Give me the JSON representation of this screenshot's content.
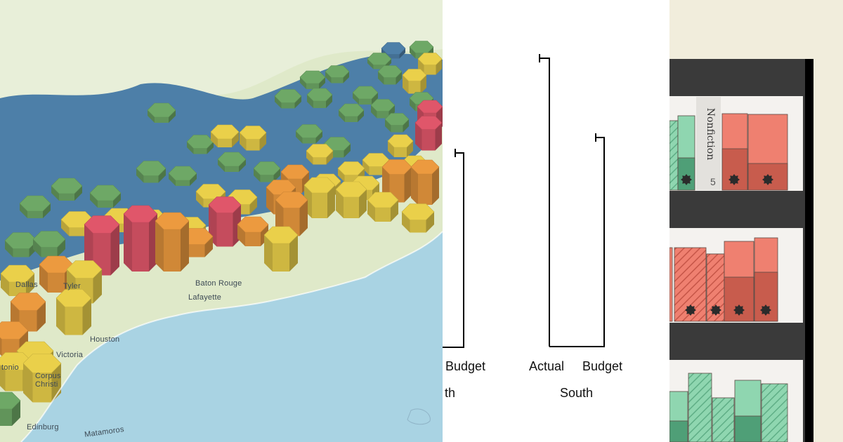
{
  "map": {
    "labels": {
      "matamoros": "Matamoros",
      "edinburg": "Edinburg",
      "corpus_christi": "Corpus\nChristi",
      "victoria": "Victoria",
      "houston": "Houston",
      "baton_rouge": "Baton Rouge",
      "lafayette": "Lafayette",
      "dallas": "Dallas",
      "tyler": "Tyler",
      "tonio": "tonio"
    },
    "colors": {
      "sea": "#a9d3e3",
      "land": "#dfe9c9",
      "blue_hex": "#4d7fa8",
      "green_hex": "#6ea866",
      "yellow_hex": "#ead04a",
      "orange_hex": "#ec9a3f",
      "red_hex": "#e0566a"
    }
  },
  "chart": {
    "x_labels": {
      "actual": "Actual",
      "budget_left": "Budget",
      "budget": "Budget"
    },
    "group_labels": {
      "left_partial": "th",
      "south": "South"
    }
  },
  "shelf": {
    "section_label": "Nonfiction",
    "count": "5",
    "colors": {
      "green": "#8fd6b0",
      "red": "#ef8070",
      "dark": "#3a3a3a",
      "paper": "#f4f2ef"
    }
  }
}
